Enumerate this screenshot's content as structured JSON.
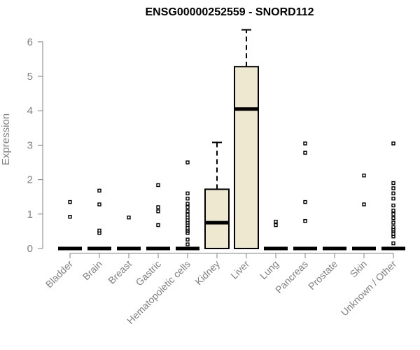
{
  "chart_data": {
    "type": "boxplot",
    "title": "ENSG00000252559 - SNORD112",
    "ylabel": "Expression",
    "xlabel": "",
    "ylim": [
      0,
      6.4
    ],
    "yticks": [
      0,
      1,
      2,
      3,
      4,
      5,
      6
    ],
    "box_fill": "#efe8d0",
    "categories": [
      "Bladder",
      "Brain",
      "Breast",
      "Gastric",
      "Hematopoietic cells",
      "Kidney",
      "Liver",
      "Lung",
      "Pancreas",
      "Prostate",
      "Skin",
      "Unknown / Other"
    ],
    "boxes": [
      {
        "q1": 0,
        "median": 0,
        "q3": 0,
        "whisker_low": 0,
        "whisker_high": 0,
        "outliers": [
          0.92,
          1.35
        ]
      },
      {
        "q1": 0,
        "median": 0,
        "q3": 0,
        "whisker_low": 0,
        "whisker_high": 0,
        "outliers": [
          0.45,
          0.52,
          1.28,
          1.68
        ]
      },
      {
        "q1": 0,
        "median": 0,
        "q3": 0,
        "whisker_low": 0,
        "whisker_high": 0,
        "outliers": [
          0.9
        ]
      },
      {
        "q1": 0,
        "median": 0,
        "q3": 0,
        "whisker_low": 0,
        "whisker_high": 0,
        "outliers": [
          0.68,
          1.08,
          1.2,
          1.84
        ]
      },
      {
        "q1": 0,
        "median": 0,
        "q3": 0,
        "whisker_low": 0,
        "whisker_high": 0,
        "outliers": [
          0.12,
          0.26,
          0.45,
          0.5,
          0.55,
          0.6,
          0.68,
          0.75,
          0.82,
          0.9,
          0.98,
          1.08,
          1.2,
          1.3,
          1.45,
          1.6,
          2.5
        ]
      },
      {
        "q1": 0,
        "median": 0.75,
        "q3": 1.72,
        "whisker_low": 0,
        "whisker_high": 3.08,
        "outliers": []
      },
      {
        "q1": 0,
        "median": 4.05,
        "q3": 5.28,
        "whisker_low": 0,
        "whisker_high": 6.35,
        "outliers": []
      },
      {
        "q1": 0,
        "median": 0,
        "q3": 0,
        "whisker_low": 0,
        "whisker_high": 0,
        "outliers": [
          0.68,
          0.78
        ]
      },
      {
        "q1": 0,
        "median": 0,
        "q3": 0,
        "whisker_low": 0,
        "whisker_high": 0,
        "outliers": [
          0.8,
          1.35,
          2.78,
          3.05
        ]
      },
      {
        "q1": 0,
        "median": 0,
        "q3": 0,
        "whisker_low": 0,
        "whisker_high": 0,
        "outliers": []
      },
      {
        "q1": 0,
        "median": 0,
        "q3": 0,
        "whisker_low": 0,
        "whisker_high": 0,
        "outliers": [
          1.28,
          2.12
        ]
      },
      {
        "q1": 0,
        "median": 0,
        "q3": 0,
        "whisker_low": 0,
        "whisker_high": 0,
        "outliers": [
          0.15,
          0.35,
          0.42,
          0.5,
          0.55,
          0.62,
          0.75,
          0.88,
          1.0,
          1.1,
          1.25,
          1.45,
          1.6,
          1.75,
          1.9,
          3.05
        ]
      }
    ]
  }
}
